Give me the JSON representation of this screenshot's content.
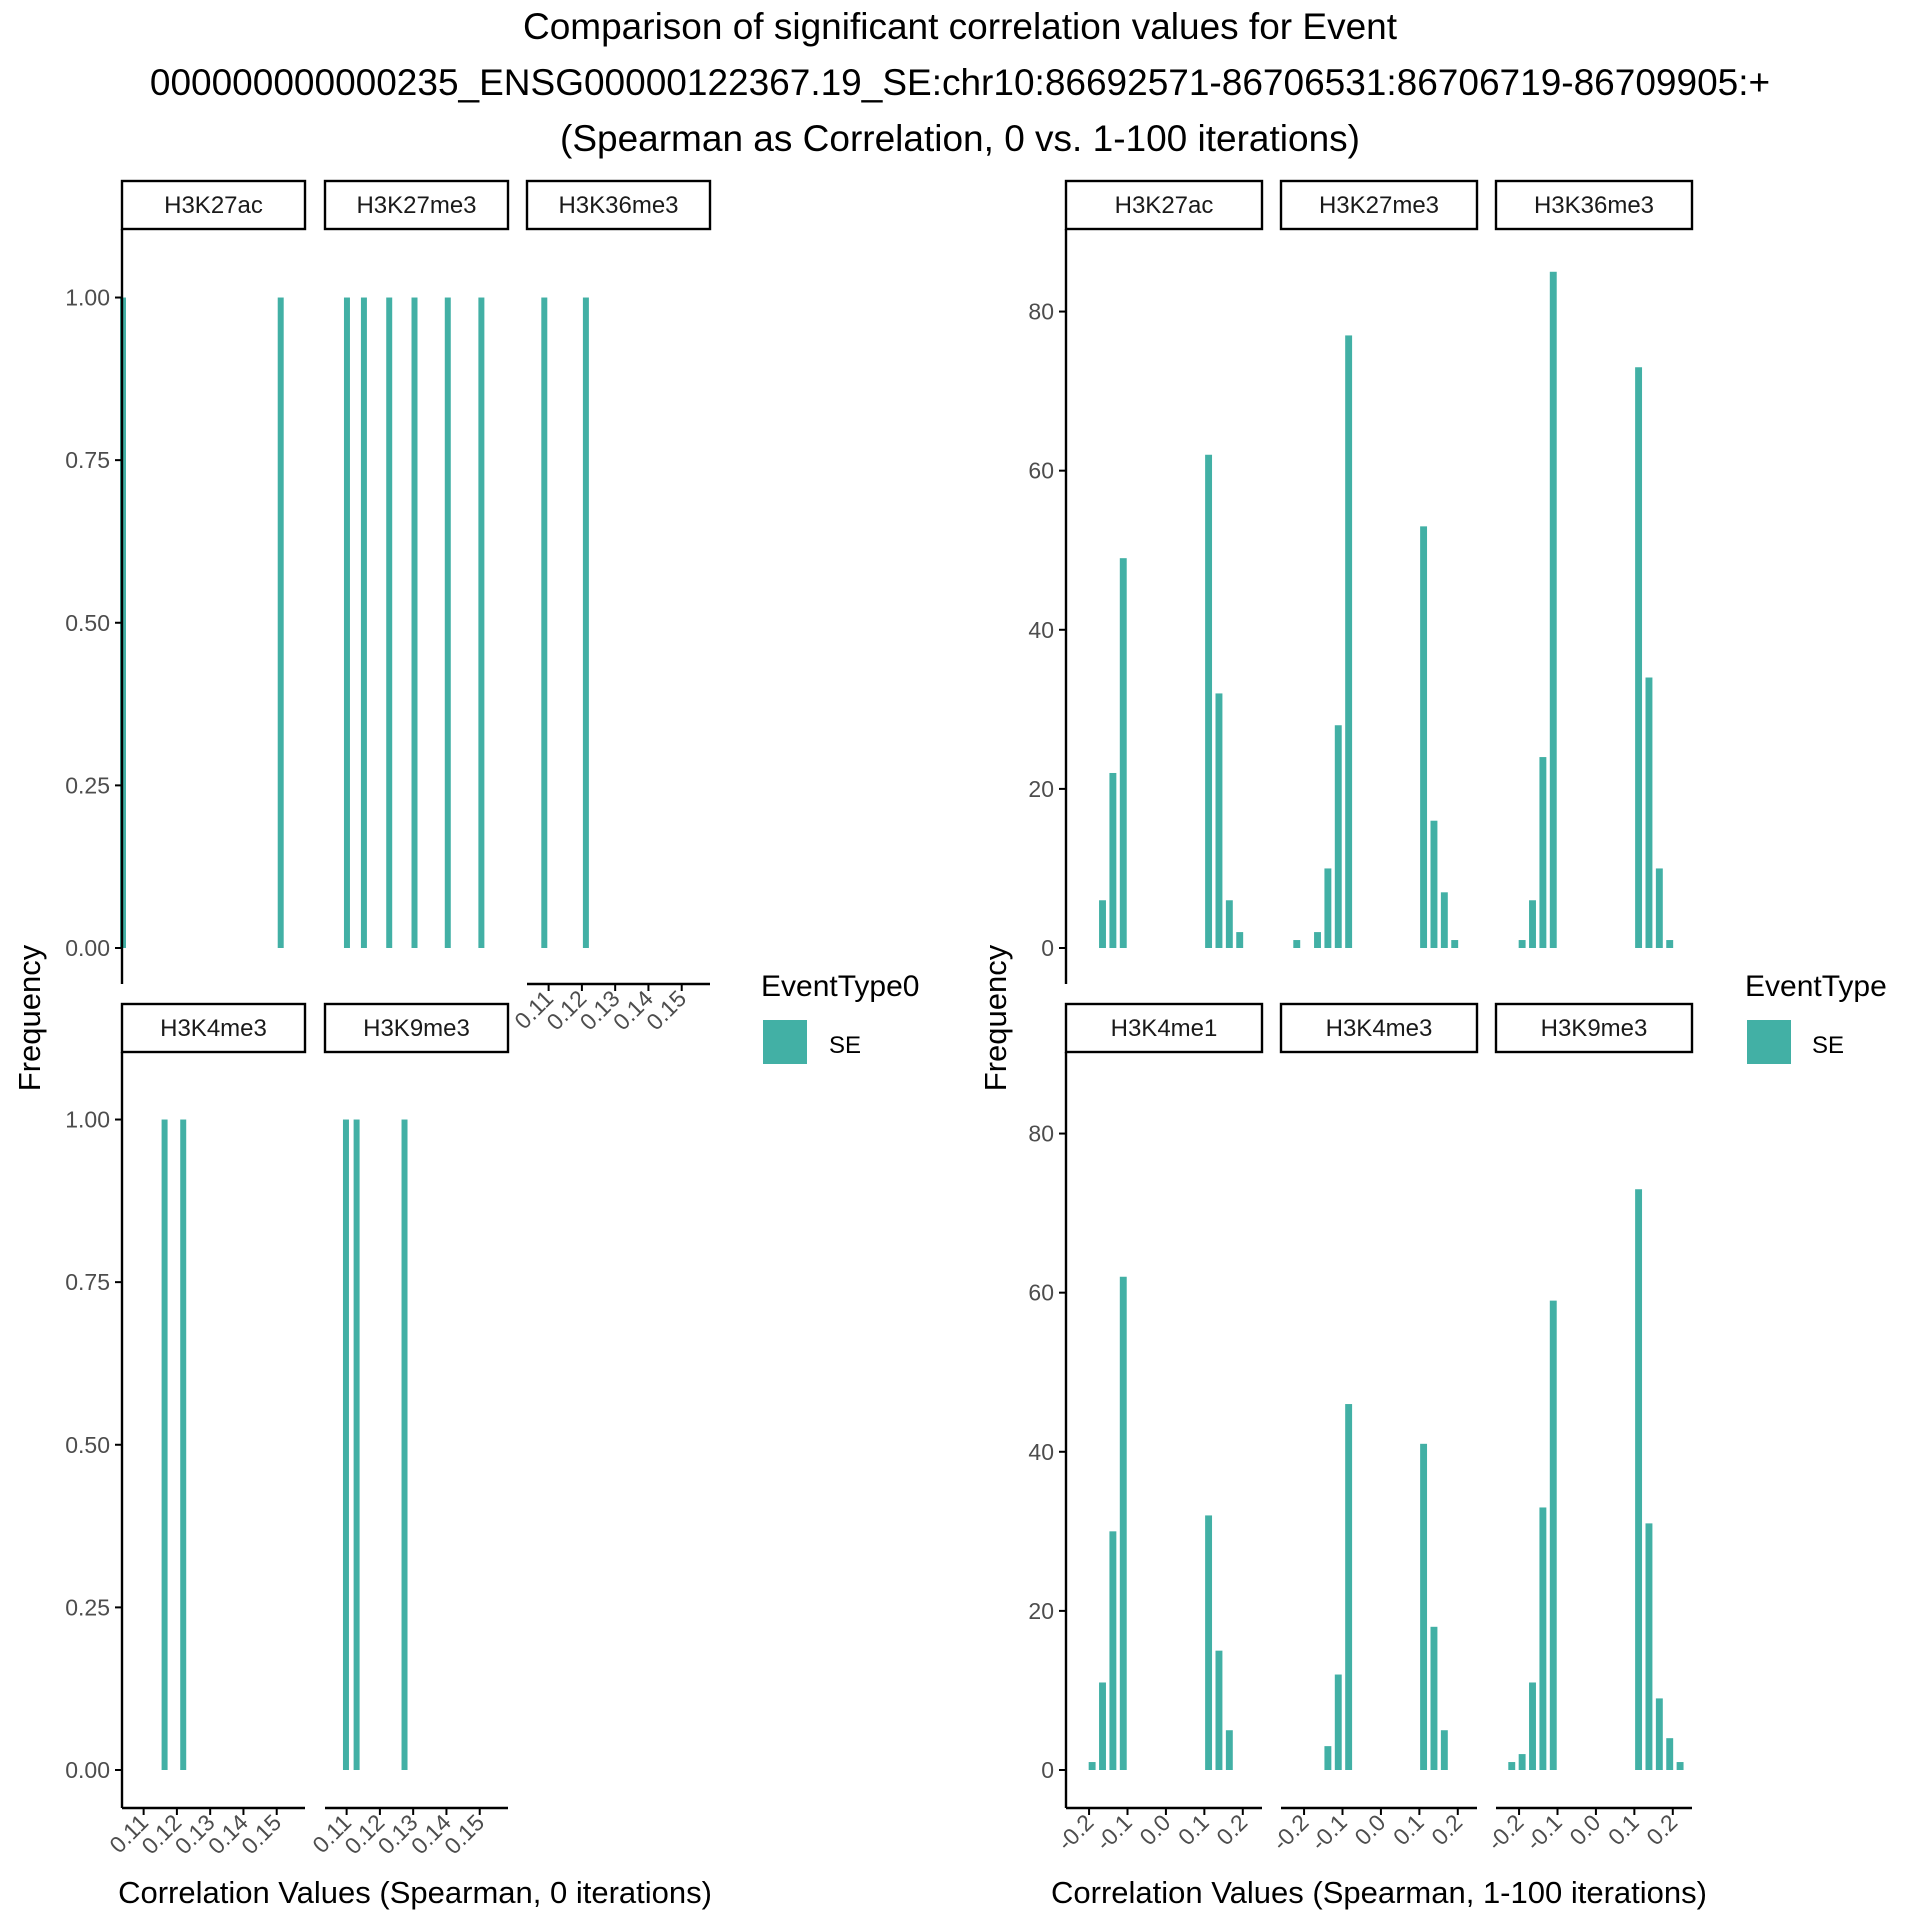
{
  "title": {
    "line1": "Comparison of significant correlation values for Event",
    "line2": "000000000000235_ENSG00000122367.19_SE:chr10:86692571-86706531:86706719-86709905:+",
    "line3": "(Spearman as Correlation, 0 vs. 1-100 iterations)"
  },
  "colors": {
    "bar": "#42b0a5",
    "axis": "#000000",
    "tick_text": "#4d4d4d"
  },
  "chart_data": [
    {
      "type": "bar",
      "name": "left-0-iterations",
      "xlabel": "Correlation Values (Spearman, 0 iterations)",
      "ylabel": "Frequency",
      "xlim": [
        0.1035,
        0.1585
      ],
      "ylim": [
        0,
        1.05
      ],
      "xticks": [
        0.11,
        0.12,
        0.13,
        0.14,
        0.15
      ],
      "xtick_labels": [
        "0.11",
        "0.12",
        "0.13",
        "0.14",
        "0.15"
      ],
      "yticks": [
        0,
        0.25,
        0.5,
        0.75,
        1
      ],
      "ytick_labels": [
        "0.00",
        "0.25",
        "0.50",
        "0.75",
        "1.00"
      ],
      "bar_width": 0.0018,
      "legend": {
        "title": "EventType0",
        "entries": [
          "SE"
        ]
      },
      "grid": false,
      "panels": [
        {
          "label": "H3K27ac",
          "bars": [
            {
              "x": 0.1038,
              "y": 1
            },
            {
              "x": 0.1512,
              "y": 1
            }
          ]
        },
        {
          "label": "H3K27me3",
          "bars": [
            {
              "x": 0.1101,
              "y": 1
            },
            {
              "x": 0.1152,
              "y": 1
            },
            {
              "x": 0.1228,
              "y": 1
            },
            {
              "x": 0.1304,
              "y": 1
            },
            {
              "x": 0.1404,
              "y": 1
            },
            {
              "x": 0.1505,
              "y": 1
            }
          ]
        },
        {
          "label": "H3K36me3",
          "bars": [
            {
              "x": 0.1087,
              "y": 1
            },
            {
              "x": 0.1212,
              "y": 1
            }
          ]
        },
        {
          "label": "H3K4me3",
          "bars": [
            {
              "x": 0.1163,
              "y": 1
            },
            {
              "x": 0.1219,
              "y": 1
            }
          ]
        },
        {
          "label": "H3K9me3",
          "bars": [
            {
              "x": 0.1098,
              "y": 1
            },
            {
              "x": 0.113,
              "y": 1
            },
            {
              "x": 0.1274,
              "y": 1
            }
          ]
        }
      ]
    },
    {
      "type": "bar",
      "name": "right-1-100-iterations",
      "xlabel": "Correlation Values (Spearman, 1-100 iterations)",
      "ylabel": "Frequency",
      "xlim": [
        -0.26,
        0.25
      ],
      "ylim": [
        0,
        90
      ],
      "xticks": [
        -0.2,
        -0.1,
        0.0,
        0.1,
        0.2
      ],
      "xtick_labels": [
        "-0.2",
        "-0.1",
        "0.0",
        "0.1",
        "0.2"
      ],
      "yticks": [
        0,
        20,
        40,
        60,
        80
      ],
      "ytick_labels": [
        "0",
        "20",
        "40",
        "60",
        "80"
      ],
      "bar_width": 0.018,
      "legend": {
        "title": "EventType",
        "entries": [
          "SE"
        ]
      },
      "grid": false,
      "panels": [
        {
          "label": "H3K27ac",
          "bars": [
            {
              "x": -0.165,
              "y": 6
            },
            {
              "x": -0.138,
              "y": 22
            },
            {
              "x": -0.111,
              "y": 49
            },
            {
              "x": 0.111,
              "y": 62
            },
            {
              "x": 0.138,
              "y": 32
            },
            {
              "x": 0.165,
              "y": 6
            },
            {
              "x": 0.192,
              "y": 2
            }
          ]
        },
        {
          "label": "H3K27me3",
          "bars": [
            {
              "x": -0.219,
              "y": 1
            },
            {
              "x": -0.165,
              "y": 2
            },
            {
              "x": -0.138,
              "y": 10
            },
            {
              "x": -0.111,
              "y": 28
            },
            {
              "x": -0.084,
              "y": 77
            },
            {
              "x": 0.111,
              "y": 53
            },
            {
              "x": 0.138,
              "y": 16
            },
            {
              "x": 0.165,
              "y": 7
            },
            {
              "x": 0.192,
              "y": 1
            }
          ]
        },
        {
          "label": "H3K36me3",
          "bars": [
            {
              "x": -0.192,
              "y": 1
            },
            {
              "x": -0.165,
              "y": 6
            },
            {
              "x": -0.138,
              "y": 24
            },
            {
              "x": -0.111,
              "y": 85
            },
            {
              "x": 0.111,
              "y": 73
            },
            {
              "x": 0.138,
              "y": 34
            },
            {
              "x": 0.165,
              "y": 10
            },
            {
              "x": 0.192,
              "y": 1
            }
          ]
        },
        {
          "label": "H3K4me1",
          "bars": [
            {
              "x": -0.192,
              "y": 1
            },
            {
              "x": -0.165,
              "y": 11
            },
            {
              "x": -0.138,
              "y": 30
            },
            {
              "x": -0.111,
              "y": 62
            },
            {
              "x": 0.111,
              "y": 32
            },
            {
              "x": 0.138,
              "y": 15
            },
            {
              "x": 0.165,
              "y": 5
            }
          ]
        },
        {
          "label": "H3K4me3",
          "bars": [
            {
              "x": -0.138,
              "y": 3
            },
            {
              "x": -0.111,
              "y": 12
            },
            {
              "x": -0.084,
              "y": 46
            },
            {
              "x": 0.111,
              "y": 41
            },
            {
              "x": 0.138,
              "y": 18
            },
            {
              "x": 0.165,
              "y": 5
            }
          ]
        },
        {
          "label": "H3K9me3",
          "bars": [
            {
              "x": -0.219,
              "y": 1
            },
            {
              "x": -0.192,
              "y": 2
            },
            {
              "x": -0.165,
              "y": 11
            },
            {
              "x": -0.138,
              "y": 33
            },
            {
              "x": -0.111,
              "y": 59
            },
            {
              "x": 0.111,
              "y": 73
            },
            {
              "x": 0.138,
              "y": 31
            },
            {
              "x": 0.165,
              "y": 9
            },
            {
              "x": 0.192,
              "y": 4
            },
            {
              "x": 0.219,
              "y": 1
            }
          ]
        }
      ]
    }
  ]
}
